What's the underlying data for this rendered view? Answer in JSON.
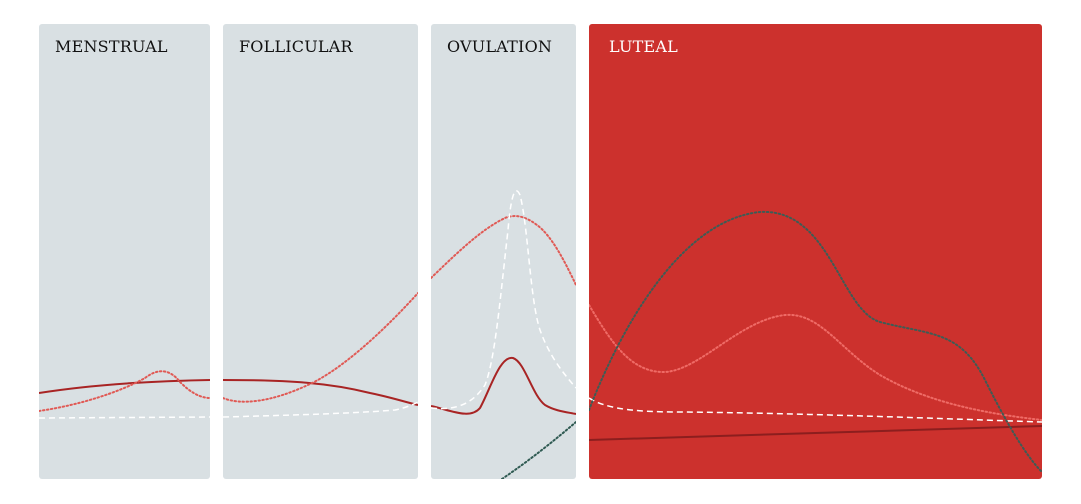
{
  "phases": [
    {
      "id": "menstrual",
      "label": "MENSTRUAL"
    },
    {
      "id": "follicular",
      "label": "FOLLICULAR"
    },
    {
      "id": "ovulation",
      "label": "OVULATION"
    },
    {
      "id": "luteal",
      "label": "LUTEAL"
    }
  ],
  "colors": {
    "panel_gray": "#d9e0e3",
    "panel_highlight": "#cc312d",
    "curve_solid": "#a82424",
    "curve_dotted_red": "#e05a55",
    "curve_dashed_white": "#ffffff",
    "curve_dotted_green": "#2f5a52"
  },
  "curves": [
    {
      "style": "solid",
      "color": "dark-red"
    },
    {
      "style": "dotted",
      "color": "light-red"
    },
    {
      "style": "dashed",
      "color": "white"
    },
    {
      "style": "dotted",
      "color": "dark-green"
    }
  ]
}
